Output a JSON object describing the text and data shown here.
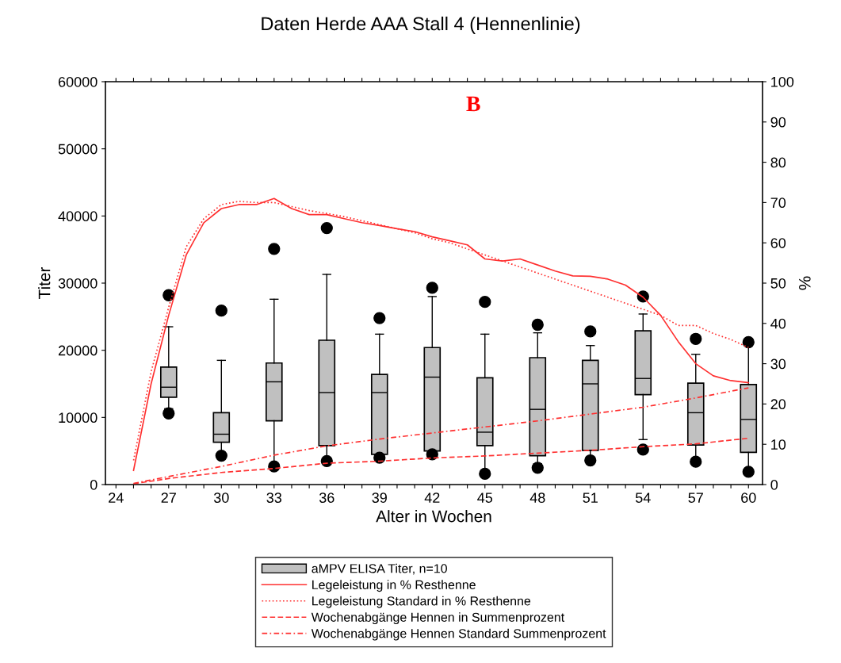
{
  "chart_data": {
    "type": "box",
    "title": "Daten Herde AAA Stall 4 (Hennenlinie)",
    "xlabel": "Alter in Wochen",
    "ylabel": "Titer",
    "y2label": "%",
    "annotations": [
      "B"
    ],
    "xlim": [
      23.4,
      60.8
    ],
    "xticks": [
      24,
      {
        "value": 25,
        "label": null
      },
      {
        "value": 26,
        "label": null
      },
      27,
      {
        "value": 28,
        "label": null
      },
      {
        "value": 29,
        "label": null
      },
      30,
      {
        "value": 31,
        "label": null
      },
      {
        "value": 32,
        "label": null
      },
      33,
      {
        "value": 34,
        "label": null
      },
      {
        "value": 35,
        "label": null
      },
      36,
      {
        "value": 37,
        "label": null
      },
      {
        "value": 38,
        "label": null
      },
      39,
      {
        "value": 40,
        "label": null
      },
      {
        "value": 41,
        "label": null
      },
      42,
      {
        "value": 43,
        "label": null
      },
      {
        "value": 44,
        "label": null
      },
      45,
      {
        "value": 46,
        "label": null
      },
      {
        "value": 47,
        "label": null
      },
      48,
      {
        "value": 49,
        "label": null
      },
      {
        "value": 50,
        "label": null
      },
      51,
      {
        "value": 52,
        "label": null
      },
      {
        "value": 53,
        "label": null
      },
      54,
      {
        "value": 55,
        "label": null
      },
      {
        "value": 56,
        "label": null
      },
      57,
      {
        "value": 58,
        "label": null
      },
      {
        "value": 59,
        "label": null
      },
      60
    ],
    "ylim": [
      0,
      60000
    ],
    "yticks": [
      0,
      10000,
      20000,
      30000,
      40000,
      50000,
      60000
    ],
    "y2lim": [
      0,
      100
    ],
    "y2ticks": [
      0,
      10,
      20,
      30,
      40,
      50,
      60,
      70,
      80,
      90,
      100
    ],
    "grid": false,
    "legend": "bottom",
    "series": [
      {
        "type": "box",
        "name": "aMPV ELISA Titer, n=10",
        "color": "#c0c0c0",
        "x": [
          27,
          30,
          33,
          36,
          39,
          42,
          45,
          48,
          51,
          54,
          57,
          60
        ],
        "boxes": [
          {
            "low": 11300,
            "q1": 13000,
            "median": 14500,
            "q3": 17500,
            "high": 23500,
            "outliers": [
              28200,
              10600
            ]
          },
          {
            "low": 4400,
            "q1": 6300,
            "median": 7500,
            "q3": 10700,
            "high": 18500,
            "outliers": [
              25900,
              4300
            ]
          },
          {
            "low": 3000,
            "q1": 9500,
            "median": 15300,
            "q3": 18100,
            "high": 27600,
            "outliers": [
              35100,
              2700
            ]
          },
          {
            "low": 3900,
            "q1": 5800,
            "median": 13700,
            "q3": 21500,
            "high": 31300,
            "outliers": [
              38200,
              3500
            ]
          },
          {
            "low": 3900,
            "q1": 4500,
            "median": 13700,
            "q3": 16400,
            "high": 22400,
            "outliers": [
              24800,
              4000
            ]
          },
          {
            "low": 4800,
            "q1": 5000,
            "median": 16000,
            "q3": 20400,
            "high": 28000,
            "outliers": [
              29300,
              4500
            ]
          },
          {
            "low": 2100,
            "q1": 5800,
            "median": 7800,
            "q3": 15900,
            "high": 22400,
            "outliers": [
              27200,
              1600
            ]
          },
          {
            "low": 3100,
            "q1": 4300,
            "median": 11200,
            "q3": 18900,
            "high": 22600,
            "outliers": [
              23800,
              2500
            ]
          },
          {
            "low": 4000,
            "q1": 5100,
            "median": 15000,
            "q3": 18500,
            "high": 20700,
            "outliers": [
              22800,
              3600
            ]
          },
          {
            "low": 6700,
            "q1": 13400,
            "median": 15800,
            "q3": 22900,
            "high": 25400,
            "outliers": [
              28000,
              5200
            ]
          },
          {
            "low": 3900,
            "q1": 5900,
            "median": 10700,
            "q3": 15100,
            "high": 19400,
            "outliers": [
              21700,
              3400
            ]
          },
          {
            "low": 2000,
            "q1": 4800,
            "median": 9700,
            "q3": 14900,
            "high": 20700,
            "outliers": [
              21200,
              1900
            ]
          }
        ]
      },
      {
        "type": "line",
        "axis": "y2",
        "name": "Legeleistung in % Resthenne",
        "color": "#ff3030",
        "line_style": "solid",
        "x": [
          25,
          26,
          27,
          28,
          29,
          30,
          31,
          32,
          33,
          34,
          35,
          36,
          37,
          38,
          39,
          40,
          41,
          42,
          43,
          44,
          45,
          46,
          47,
          48,
          49,
          50,
          51,
          52,
          53,
          54,
          55,
          56,
          57,
          58,
          59,
          60
        ],
        "values": [
          3.5,
          25,
          42,
          57,
          65,
          68.5,
          69.5,
          69.5,
          71,
          68.5,
          67,
          67,
          66,
          65,
          64.3,
          63.5,
          62.8,
          61.5,
          60.5,
          59.5,
          56,
          55.5,
          56,
          54.5,
          53,
          51.8,
          51.7,
          51,
          49.5,
          46.5,
          42,
          35.5,
          30,
          27,
          25.8,
          25.3
        ]
      },
      {
        "type": "line",
        "axis": "y2",
        "name": "Legeleistung Standard in % Resthenne",
        "color": "#ff3030",
        "line_style": "dotted",
        "x": [
          25,
          26,
          27,
          28,
          29,
          30,
          31,
          32,
          33,
          34,
          35,
          36,
          37,
          38,
          39,
          40,
          41,
          42,
          43,
          44,
          45,
          46,
          47,
          48,
          49,
          50,
          51,
          52,
          53,
          54,
          55,
          56,
          57,
          58,
          59,
          60
        ],
        "values": [
          6,
          28,
          44,
          59,
          66,
          69.5,
          70.3,
          70,
          70,
          69,
          68,
          67.3,
          66.5,
          65.5,
          64.5,
          63.5,
          62.5,
          61,
          60,
          58.5,
          57,
          55.5,
          54,
          52.5,
          51,
          49.5,
          48,
          46.5,
          45,
          43.5,
          42,
          39.5,
          39.5,
          37.5,
          36,
          34
        ]
      },
      {
        "type": "line",
        "axis": "y2",
        "name": "Wochenabgänge Hennen in Summenprozent",
        "color": "#ff3030",
        "line_style": "dashed",
        "x": [
          25,
          27,
          30,
          33,
          36,
          39,
          42,
          45,
          48,
          51,
          54,
          57,
          60
        ],
        "values": [
          0.2,
          1.5,
          3,
          4,
          5.3,
          5.8,
          6.6,
          7.1,
          7.8,
          8.5,
          9.4,
          10.1,
          11.5
        ]
      },
      {
        "type": "line",
        "axis": "y2",
        "name": "Wochenabgänge Hennen Standard Summenprozent",
        "color": "#ff3030",
        "line_style": "dashdot",
        "x": [
          25,
          27,
          30,
          33,
          36,
          39,
          42,
          45,
          48,
          51,
          54,
          57,
          60
        ],
        "values": [
          0.3,
          2,
          4.5,
          7.3,
          9.6,
          11.3,
          12.8,
          14.3,
          15.8,
          17.5,
          19.2,
          21.5,
          24
        ]
      }
    ]
  }
}
